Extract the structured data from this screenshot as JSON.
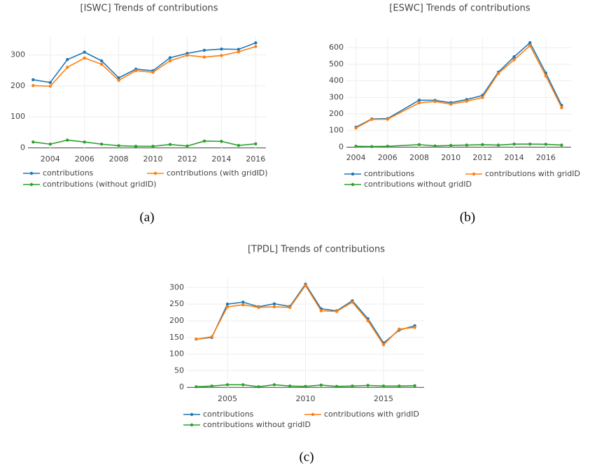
{
  "chart_data": [
    {
      "type": "line",
      "title": "[ISWC] Trends of contributions",
      "caption": "(a)",
      "x": [
        2003,
        2004,
        2005,
        2006,
        2007,
        2008,
        2009,
        2010,
        2011,
        2012,
        2013,
        2014,
        2015,
        2016
      ],
      "series": [
        {
          "name": "contributions",
          "color": "#1f77b4",
          "values": [
            220,
            211,
            285,
            309,
            281,
            226,
            254,
            249,
            291,
            305,
            315,
            319,
            318,
            339
          ]
        },
        {
          "name": "contributions (with gridID)",
          "color": "#ff7f0e",
          "values": [
            201,
            199,
            260,
            290,
            270,
            218,
            249,
            244,
            281,
            299,
            293,
            298,
            310,
            327
          ]
        },
        {
          "name": "contributions (without gridID)",
          "color": "#2ca02c",
          "values": [
            19,
            12,
            25,
            19,
            12,
            7,
            5,
            5,
            11,
            6,
            22,
            21,
            8,
            13
          ]
        }
      ],
      "xlim": [
        2002.7,
        2016.6
      ],
      "xticks": [
        2004,
        2006,
        2008,
        2010,
        2012,
        2014,
        2016
      ],
      "ylim": [
        -10,
        360
      ],
      "yticks": [
        0,
        100,
        200,
        300
      ],
      "grid": true
    },
    {
      "type": "line",
      "title": "[ESWC] Trends of contributions",
      "caption": "(b)",
      "x": [
        2004,
        2005,
        2006,
        2008,
        2009,
        2010,
        2011,
        2012,
        2013,
        2014,
        2015,
        2016,
        2017
      ],
      "series": [
        {
          "name": "contributions",
          "color": "#1f77b4",
          "values": [
            120,
            170,
            172,
            283,
            282,
            268,
            287,
            312,
            452,
            545,
            630,
            447,
            252
          ]
        },
        {
          "name": "contributions with gridID",
          "color": "#ff7f0e",
          "values": [
            115,
            167,
            168,
            267,
            275,
            259,
            277,
            299,
            445,
            527,
            612,
            430,
            238
          ]
        },
        {
          "name": "contributions without gridID",
          "color": "#2ca02c",
          "values": [
            5,
            3,
            5,
            15,
            7,
            10,
            12,
            15,
            12,
            18,
            18,
            17,
            12
          ]
        }
      ],
      "xlim": [
        2003.4,
        2017.6
      ],
      "xticks": [
        2004,
        2006,
        2008,
        2010,
        2012,
        2014,
        2016
      ],
      "ylim": [
        -15,
        660
      ],
      "yticks": [
        0,
        100,
        200,
        300,
        400,
        500,
        600
      ],
      "grid": true
    },
    {
      "type": "line",
      "title": "[TPDL] Trends of contributions",
      "caption": "(c)",
      "x": [
        2003,
        2004,
        2005,
        2006,
        2007,
        2008,
        2009,
        2010,
        2011,
        2012,
        2013,
        2014,
        2015,
        2016,
        2017
      ],
      "series": [
        {
          "name": "contributions",
          "color": "#1f77b4",
          "values": [
            145,
            150,
            250,
            256,
            242,
            251,
            243,
            310,
            236,
            230,
            260,
            206,
            133,
            172,
            185
          ]
        },
        {
          "name": "contributions with gridID",
          "color": "#ff7f0e",
          "values": [
            145,
            152,
            242,
            248,
            240,
            242,
            240,
            306,
            230,
            228,
            256,
            200,
            128,
            175,
            180
          ]
        },
        {
          "name": "contributions without gridID",
          "color": "#2ca02c",
          "values": [
            2,
            4,
            8,
            8,
            2,
            8,
            4,
            3,
            7,
            3,
            4,
            6,
            4,
            4,
            5
          ]
        }
      ],
      "xlim": [
        2002.4,
        2017.6
      ],
      "xticks": [
        2005,
        2010,
        2015
      ],
      "ylim": [
        -10,
        330
      ],
      "yticks": [
        0,
        50,
        100,
        150,
        200,
        250,
        300
      ],
      "grid": true
    }
  ]
}
